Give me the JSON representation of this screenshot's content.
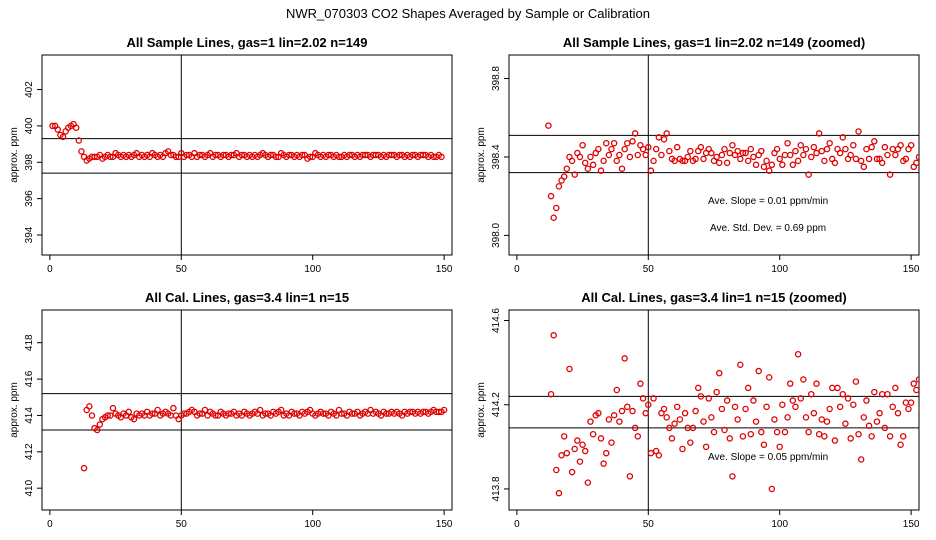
{
  "figure": {
    "title": "NWR_070303  CO2 Shapes Averaged by Sample or Calibration",
    "marker_color": "#e00000"
  },
  "chart_data": [
    {
      "type": "scatter",
      "title": "All Sample Lines, gas=1 lin=2.02 n=149",
      "xlabel": "",
      "ylabel": "approx. ppm",
      "xlim": [
        -3,
        153
      ],
      "ylim": [
        392.9,
        403.9
      ],
      "xticks": [
        0,
        50,
        100,
        150
      ],
      "yticks": [
        394,
        396,
        398,
        400,
        402
      ],
      "vline": 50,
      "hlines": [
        397.4,
        399.3
      ],
      "annotations": [],
      "x_start": 1,
      "y": [
        400.0,
        400.0,
        399.8,
        399.5,
        399.4,
        399.7,
        399.9,
        400.0,
        400.1,
        399.9,
        399.2,
        398.6,
        398.3,
        398.1,
        398.2,
        398.3,
        398.3,
        398.3,
        398.4,
        398.2,
        398.3,
        398.4,
        398.3,
        398.3,
        398.5,
        398.4,
        398.3,
        398.4,
        398.3,
        398.4,
        398.3,
        398.4,
        398.5,
        398.3,
        398.4,
        398.3,
        398.4,
        398.3,
        398.5,
        398.4,
        398.3,
        398.4,
        398.3,
        398.5,
        398.6,
        398.4,
        398.4,
        398.3,
        398.3,
        398.5,
        398.3,
        398.4,
        398.4,
        398.3,
        398.5,
        398.3,
        398.4,
        398.4,
        398.3,
        398.4,
        398.5,
        398.3,
        398.4,
        398.4,
        398.3,
        398.4,
        398.4,
        398.3,
        398.4,
        398.4,
        398.5,
        398.3,
        398.4,
        398.4,
        398.3,
        398.4,
        398.3,
        398.4,
        398.3,
        398.4,
        398.5,
        398.4,
        398.3,
        398.4,
        398.4,
        398.3,
        398.3,
        398.5,
        398.4,
        398.3,
        398.4,
        398.4,
        398.3,
        398.4,
        398.3,
        398.4,
        398.4,
        398.2,
        398.3,
        398.3,
        398.5,
        398.4,
        398.3,
        398.4,
        398.3,
        398.4,
        398.4,
        398.3,
        398.4,
        398.3,
        398.3,
        398.4,
        398.3,
        398.4,
        398.4,
        398.3,
        398.4,
        398.3,
        398.4,
        398.4,
        398.4,
        398.3,
        398.4,
        398.4,
        398.4,
        398.3,
        398.4,
        398.3,
        398.4,
        398.4,
        398.4,
        398.3,
        398.4,
        398.4,
        398.3,
        398.4,
        398.3,
        398.4,
        398.4,
        398.3,
        398.4,
        398.4,
        398.4,
        398.3,
        398.4,
        398.3,
        398.3,
        398.4,
        398.3
      ]
    },
    {
      "type": "scatter",
      "title": "All Sample Lines, gas=1 lin=2.02 n=149 (zoomed)",
      "xlabel": "",
      "ylabel": "approx. ppm",
      "xlim": [
        -3,
        153
      ],
      "ylim": [
        397.9,
        398.92
      ],
      "xticks": [
        0,
        50,
        100,
        150
      ],
      "yticks": [
        398.0,
        398.4,
        398.8
      ],
      "vline": 50,
      "hlines": [
        398.32,
        398.51
      ],
      "annotations": [
        "Ave. Slope =  0.01  ppm/min",
        "Ave. Std. Dev. =  0.69  ppm"
      ],
      "x_start": 12,
      "y": [
        398.56,
        398.2,
        398.09,
        398.14,
        398.25,
        398.28,
        398.3,
        398.34,
        398.4,
        398.38,
        398.31,
        398.42,
        398.4,
        398.46,
        398.37,
        398.34,
        398.4,
        398.36,
        398.42,
        398.44,
        398.33,
        398.38,
        398.47,
        398.41,
        398.44,
        398.47,
        398.38,
        398.41,
        398.34,
        398.44,
        398.47,
        398.4,
        398.48,
        398.52,
        398.41,
        398.46,
        398.44,
        398.41,
        398.45,
        398.33,
        398.38,
        398.44,
        398.5,
        398.41,
        398.49,
        398.52,
        398.43,
        398.39,
        398.38,
        398.45,
        398.39,
        398.38,
        398.38,
        398.4,
        398.43,
        398.38,
        398.39,
        398.43,
        398.45,
        398.39,
        398.42,
        398.44,
        398.42,
        398.38,
        398.4,
        398.37,
        398.41,
        398.44,
        398.37,
        398.42,
        398.46,
        398.41,
        398.43,
        398.39,
        398.42,
        398.42,
        398.38,
        398.44,
        398.4,
        398.36,
        398.41,
        398.43,
        398.35,
        398.38,
        398.33,
        398.36,
        398.42,
        398.44,
        398.39,
        398.36,
        398.41,
        398.47,
        398.41,
        398.36,
        398.43,
        398.38,
        398.46,
        398.41,
        398.44,
        398.31,
        398.4,
        398.45,
        398.42,
        398.52,
        398.43,
        398.38,
        398.44,
        398.47,
        398.39,
        398.37,
        398.44,
        398.42,
        398.5,
        398.44,
        398.39,
        398.41,
        398.46,
        398.39,
        398.53,
        398.38,
        398.35,
        398.44,
        398.39,
        398.45,
        398.48,
        398.39,
        398.39,
        398.37,
        398.45,
        398.41,
        398.31,
        398.44,
        398.41,
        398.44,
        398.46,
        398.38,
        398.39,
        398.44,
        398.46,
        398.35,
        398.37,
        398.4,
        398.37,
        398.36,
        398.34,
        398.38,
        398.41,
        398.34,
        398.4
      ]
    },
    {
      "type": "scatter",
      "title": "All Cal. Lines, gas=3.4 lin=1 n=15",
      "xlabel": "",
      "ylabel": "approx. ppm",
      "xlim": [
        -3,
        153
      ],
      "ylim": [
        408.8,
        419.8
      ],
      "xticks": [
        0,
        50,
        100,
        150
      ],
      "yticks": [
        410,
        412,
        414,
        416,
        418
      ],
      "vline": 50,
      "hlines": [
        413.2,
        415.2
      ],
      "annotations": [],
      "x_start": 13,
      "y": [
        411.1,
        414.3,
        414.5,
        414.0,
        413.3,
        413.2,
        413.5,
        413.8,
        413.9,
        414.0,
        414.0,
        414.4,
        414.1,
        414.0,
        413.9,
        414.1,
        414.0,
        414.2,
        413.9,
        413.8,
        414.1,
        414.0,
        414.1,
        414.0,
        414.2,
        414.0,
        414.1,
        414.1,
        414.3,
        414.0,
        414.1,
        414.2,
        414.1,
        414.0,
        414.4,
        414.0,
        413.8,
        414.0,
        414.1,
        414.1,
        414.2,
        414.3,
        414.2,
        414.0,
        414.1,
        414.1,
        414.3,
        414.0,
        414.2,
        414.1,
        414.0,
        414.0,
        414.2,
        414.1,
        414.0,
        414.1,
        414.1,
        414.2,
        414.0,
        414.1,
        414.0,
        414.2,
        414.1,
        414.0,
        414.1,
        414.2,
        414.1,
        414.3,
        414.0,
        414.1,
        414.1,
        414.0,
        414.2,
        414.1,
        414.2,
        414.3,
        414.0,
        414.1,
        414.0,
        414.2,
        414.1,
        414.1,
        414.0,
        414.2,
        414.1,
        414.2,
        414.3,
        414.1,
        414.0,
        414.1,
        414.2,
        414.1,
        414.1,
        414.0,
        414.2,
        414.1,
        414.0,
        414.3,
        414.1,
        414.1,
        414.0,
        414.2,
        414.1,
        414.1,
        414.2,
        414.0,
        414.1,
        414.2,
        414.1,
        414.3,
        414.1,
        414.2,
        414.1,
        414.0,
        414.2,
        414.1,
        414.1,
        414.2,
        414.1,
        414.2,
        414.1,
        414.0,
        414.2,
        414.1,
        414.2,
        414.2,
        414.1,
        414.2,
        414.1,
        414.2,
        414.2,
        414.1,
        414.2,
        414.3,
        414.2,
        414.2,
        414.2,
        414.3
      ]
    },
    {
      "type": "scatter",
      "title": "All Cal. Lines, gas=3.4 lin=1 n=15 (zoomed)",
      "xlabel": "",
      "ylabel": "approx. ppm",
      "xlim": [
        -3,
        153
      ],
      "ylim": [
        413.7,
        414.65
      ],
      "xticks": [
        0,
        50,
        100,
        150
      ],
      "yticks": [
        413.8,
        414.2,
        414.6
      ],
      "vline": 50,
      "hlines": [
        414.09,
        414.24
      ],
      "annotations": [
        "Ave. Slope =  0.05  ppm/min"
      ],
      "x_start": 13,
      "y": [
        414.25,
        414.53,
        413.89,
        413.78,
        413.96,
        414.05,
        413.97,
        414.37,
        413.88,
        413.99,
        414.03,
        413.93,
        414.01,
        413.98,
        413.83,
        414.12,
        414.06,
        414.15,
        414.16,
        414.04,
        413.92,
        413.97,
        414.13,
        414.02,
        414.15,
        414.27,
        414.12,
        414.17,
        414.42,
        414.19,
        413.86,
        414.17,
        414.09,
        414.05,
        414.3,
        414.23,
        414.16,
        414.2,
        413.97,
        414.23,
        413.98,
        413.96,
        414.16,
        414.18,
        414.14,
        414.09,
        414.04,
        414.11,
        414.19,
        414.13,
        413.99,
        414.16,
        414.09,
        414.02,
        414.09,
        414.17,
        414.28,
        414.24,
        414.12,
        414.0,
        414.23,
        414.14,
        414.07,
        414.26,
        414.35,
        414.18,
        414.08,
        414.22,
        414.04,
        413.86,
        414.19,
        414.13,
        414.39,
        414.05,
        414.18,
        414.28,
        414.06,
        414.22,
        414.12,
        414.36,
        414.07,
        414.01,
        414.19,
        414.33,
        413.8,
        414.13,
        414.07,
        414.0,
        414.2,
        414.07,
        414.14,
        414.3,
        414.22,
        414.19,
        414.44,
        414.23,
        414.32,
        414.14,
        414.07,
        414.25,
        414.16,
        414.3,
        414.06,
        414.13,
        414.05,
        414.12,
        414.18,
        414.28,
        414.03,
        414.28,
        414.19,
        414.25,
        414.11,
        414.23,
        414.04,
        414.2,
        414.31,
        414.06,
        413.94,
        414.14,
        414.22,
        414.1,
        414.05,
        414.26,
        414.12,
        414.16,
        414.25,
        414.09,
        414.25,
        414.05,
        414.19,
        414.28,
        414.16,
        414.01,
        414.05,
        414.21,
        414.18,
        414.21,
        414.3,
        414.27,
        414.32,
        414.18,
        414.28
      ]
    }
  ]
}
